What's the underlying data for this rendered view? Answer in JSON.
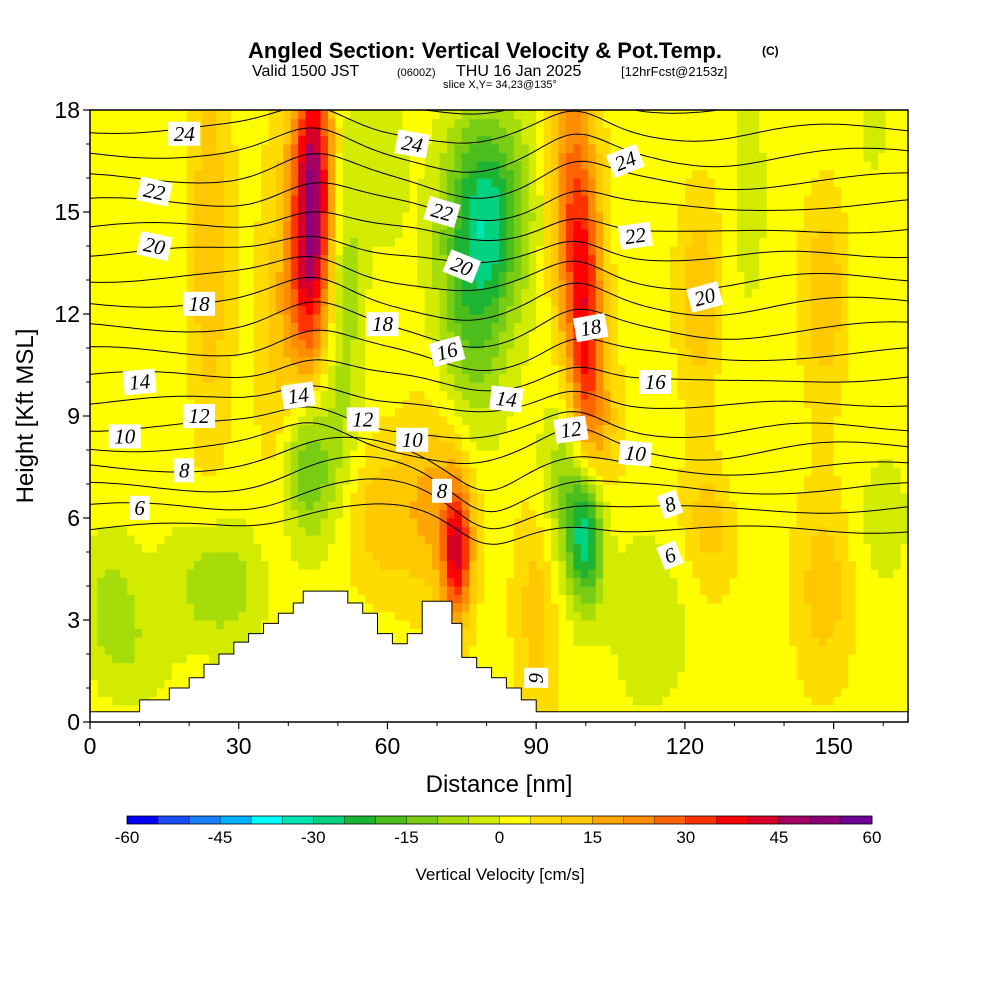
{
  "title": {
    "main": "Angled Section: Vertical Velocity & Pot.Temp.",
    "copyright": "(C)",
    "valid_a": "Valid 1500 JST",
    "valid_z": "(0600Z)",
    "valid_b": "THU 16 Jan 2025",
    "fcst": "[12hrFcst@2153z]",
    "slice": "slice X,Y= 34,23@135°"
  },
  "colorbar": {
    "title": "Vertical Velocity [cm/s]",
    "min": -60,
    "max": 60,
    "step": 5,
    "tick_labels": [
      "-60",
      "-45",
      "-30",
      "-15",
      "0",
      "15",
      "30",
      "45",
      "60"
    ],
    "colors": [
      "#0000ff",
      "#1a4dff",
      "#1a80ff",
      "#00b2ff",
      "#00ffff",
      "#00e5b2",
      "#00d280",
      "#1eb433",
      "#4bbe1e",
      "#78cd14",
      "#a5dc0a",
      "#d2eb00",
      "#ffff00",
      "#ffdc00",
      "#ffc800",
      "#ffa500",
      "#ff8c00",
      "#ff6400",
      "#ff3200",
      "#ff0000",
      "#d70028",
      "#a50064",
      "#8c0078",
      "#6e0096"
    ]
  },
  "chart_data": {
    "type": "heatmap",
    "xlabel": "Distance [nm]",
    "ylabel": "Height [Kft MSL]",
    "xlim": [
      0,
      165
    ],
    "ylim": [
      0,
      18
    ],
    "xticks": [
      "0",
      "30",
      "60",
      "90",
      "120",
      "150"
    ],
    "yticks": [
      "0",
      "3",
      "6",
      "9",
      "12",
      "15",
      "18"
    ],
    "value_field": "Vertical Velocity [cm/s]",
    "background_value": 3,
    "velocity_features": [
      {
        "x": 45,
        "y": 16.0,
        "sx": 3.0,
        "sy": 2.5,
        "value": 45
      },
      {
        "x": 44,
        "y": 12.5,
        "sx": 3.0,
        "sy": 2.0,
        "value": 22
      },
      {
        "x": 38,
        "y": 11.0,
        "sx": 3.0,
        "sy": 4.0,
        "value": 8
      },
      {
        "x": 51,
        "y": 13.0,
        "sx": 3.0,
        "sy": 4.0,
        "value": -12
      },
      {
        "x": 44,
        "y": 7.5,
        "sx": 4.0,
        "sy": 1.6,
        "value": -18
      },
      {
        "x": 80,
        "y": 15.0,
        "sx": 6.0,
        "sy": 2.2,
        "value": -28
      },
      {
        "x": 77,
        "y": 11.5,
        "sx": 5.0,
        "sy": 2.5,
        "value": -14
      },
      {
        "x": 60,
        "y": 16.5,
        "sx": 3.0,
        "sy": 2.0,
        "value": -6
      },
      {
        "x": 100,
        "y": 11.5,
        "sx": 2.5,
        "sy": 3.0,
        "value": 30
      },
      {
        "x": 97,
        "y": 15.5,
        "sx": 3.0,
        "sy": 3.0,
        "value": 22
      },
      {
        "x": 103,
        "y": 8.5,
        "sx": 3.0,
        "sy": 1.5,
        "value": 10
      },
      {
        "x": 100,
        "y": 5.5,
        "sx": 2.5,
        "sy": 1.5,
        "value": -30
      },
      {
        "x": 96,
        "y": 7.0,
        "sx": 4.0,
        "sy": 1.8,
        "value": -14
      },
      {
        "x": 74,
        "y": 5.0,
        "sx": 2.0,
        "sy": 1.4,
        "value": 35
      },
      {
        "x": 70,
        "y": 6.5,
        "sx": 5.0,
        "sy": 2.0,
        "value": 14
      },
      {
        "x": 58,
        "y": 6.0,
        "sx": 5.0,
        "sy": 1.5,
        "value": 10
      },
      {
        "x": 24,
        "y": 14.0,
        "sx": 3.0,
        "sy": 4.0,
        "value": 12
      },
      {
        "x": 15,
        "y": 14.0,
        "sx": 4.0,
        "sy": 5.0,
        "value": -3
      },
      {
        "x": 26,
        "y": 4.0,
        "sx": 7.0,
        "sy": 1.3,
        "value": -12
      },
      {
        "x": 4,
        "y": 3.5,
        "sx": 4.0,
        "sy": 1.5,
        "value": -10
      },
      {
        "x": 10,
        "y": 2.0,
        "sx": 5.0,
        "sy": 1.3,
        "value": -5
      },
      {
        "x": 113,
        "y": 3.0,
        "sx": 6.0,
        "sy": 2.0,
        "value": -7
      },
      {
        "x": 123,
        "y": 12.5,
        "sx": 3.0,
        "sy": 2.0,
        "value": 12
      },
      {
        "x": 133,
        "y": 15.5,
        "sx": 3.0,
        "sy": 3.0,
        "value": -5
      },
      {
        "x": 148,
        "y": 12.5,
        "sx": 3.0,
        "sy": 2.0,
        "value": 12
      },
      {
        "x": 158,
        "y": 17.5,
        "sx": 2.0,
        "sy": 1.0,
        "value": -6
      },
      {
        "x": 148,
        "y": 4.0,
        "sx": 4.0,
        "sy": 2.0,
        "value": 10
      },
      {
        "x": 160,
        "y": 6.0,
        "sx": 4.0,
        "sy": 1.5,
        "value": -6
      },
      {
        "x": 90,
        "y": 3.5,
        "sx": 3.0,
        "sy": 2.5,
        "value": 10
      },
      {
        "x": 125,
        "y": 6.0,
        "sx": 4.0,
        "sy": 1.5,
        "value": 10
      },
      {
        "x": 130,
        "y": 8.0,
        "sx": 3.0,
        "sy": 1.5,
        "value": -4
      }
    ],
    "terrain": [
      [
        0,
        0.3
      ],
      [
        10,
        0.3
      ],
      [
        10,
        0.65
      ],
      [
        16,
        0.65
      ],
      [
        16,
        1.0
      ],
      [
        20,
        1.0
      ],
      [
        20,
        1.3
      ],
      [
        23,
        1.3
      ],
      [
        23,
        1.7
      ],
      [
        26,
        1.7
      ],
      [
        26,
        2.0
      ],
      [
        29,
        2.0
      ],
      [
        29,
        2.35
      ],
      [
        32,
        2.35
      ],
      [
        32,
        2.6
      ],
      [
        35,
        2.6
      ],
      [
        35,
        2.9
      ],
      [
        38,
        2.9
      ],
      [
        38,
        3.2
      ],
      [
        41,
        3.2
      ],
      [
        41,
        3.5
      ],
      [
        43,
        3.5
      ],
      [
        43,
        3.85
      ],
      [
        52,
        3.85
      ],
      [
        52,
        3.5
      ],
      [
        55,
        3.5
      ],
      [
        55,
        3.2
      ],
      [
        58,
        3.2
      ],
      [
        58,
        2.6
      ],
      [
        61,
        2.6
      ],
      [
        61,
        2.3
      ],
      [
        64,
        2.3
      ],
      [
        64,
        2.6
      ],
      [
        67,
        2.6
      ],
      [
        67,
        3.55
      ],
      [
        73,
        3.55
      ],
      [
        73,
        2.9
      ],
      [
        75,
        2.9
      ],
      [
        75,
        1.9
      ],
      [
        78,
        1.9
      ],
      [
        78,
        1.6
      ],
      [
        81,
        1.6
      ],
      [
        81,
        1.3
      ],
      [
        84,
        1.3
      ],
      [
        84,
        1.0
      ],
      [
        87,
        1.0
      ],
      [
        87,
        0.65
      ],
      [
        90,
        0.65
      ],
      [
        90,
        0.3
      ],
      [
        165,
        0.3
      ]
    ],
    "isentropes": {
      "levels": [
        6,
        7,
        8,
        9,
        10,
        11,
        12,
        13,
        14,
        15,
        16,
        17,
        18,
        19,
        20,
        21,
        22,
        23,
        24
      ],
      "labels": [
        {
          "level": 24,
          "x": 19,
          "y": 17.3,
          "angle": 0
        },
        {
          "level": 24,
          "x": 65,
          "y": 17.0,
          "angle": 10
        },
        {
          "level": 24,
          "x": 108,
          "y": 16.5,
          "angle": -22
        },
        {
          "level": 22,
          "x": 13,
          "y": 15.6,
          "angle": 12
        },
        {
          "level": 22,
          "x": 71,
          "y": 15.0,
          "angle": 16
        },
        {
          "level": 22,
          "x": 110,
          "y": 14.3,
          "angle": -8
        },
        {
          "level": 20,
          "x": 13,
          "y": 14.0,
          "angle": 12
        },
        {
          "level": 20,
          "x": 75,
          "y": 13.4,
          "angle": 22
        },
        {
          "level": 20,
          "x": 124,
          "y": 12.5,
          "angle": -15
        },
        {
          "level": 18,
          "x": 22,
          "y": 12.3,
          "angle": 0
        },
        {
          "level": 18,
          "x": 59,
          "y": 11.7,
          "angle": 0
        },
        {
          "level": 18,
          "x": 101,
          "y": 11.6,
          "angle": -10
        },
        {
          "level": 16,
          "x": 72,
          "y": 10.9,
          "angle": -15
        },
        {
          "level": 16,
          "x": 114,
          "y": 10.0,
          "angle": 0
        },
        {
          "level": 14,
          "x": 10,
          "y": 10.0,
          "angle": -5
        },
        {
          "level": 14,
          "x": 42,
          "y": 9.6,
          "angle": -8
        },
        {
          "level": 14,
          "x": 84,
          "y": 9.5,
          "angle": 6
        },
        {
          "level": 12,
          "x": 22,
          "y": 9.0,
          "angle": 0
        },
        {
          "level": 12,
          "x": 55,
          "y": 8.9,
          "angle": 0
        },
        {
          "level": 12,
          "x": 97,
          "y": 8.6,
          "angle": -8
        },
        {
          "level": 10,
          "x": 7,
          "y": 8.4,
          "angle": 0
        },
        {
          "level": 10,
          "x": 65,
          "y": 8.3,
          "angle": 0
        },
        {
          "level": 10,
          "x": 110,
          "y": 7.9,
          "angle": 5
        },
        {
          "level": 8,
          "x": 19,
          "y": 7.4,
          "angle": 0
        },
        {
          "level": 8,
          "x": 71,
          "y": 6.8,
          "angle": 0
        },
        {
          "level": 8,
          "x": 117,
          "y": 6.4,
          "angle": -20
        },
        {
          "level": 6,
          "x": 10,
          "y": 6.3,
          "angle": 0
        },
        {
          "level": 6,
          "x": 117,
          "y": 4.9,
          "angle": -22
        },
        {
          "level": 6,
          "x": 90,
          "y": 1.3,
          "angle": 90
        }
      ]
    }
  }
}
